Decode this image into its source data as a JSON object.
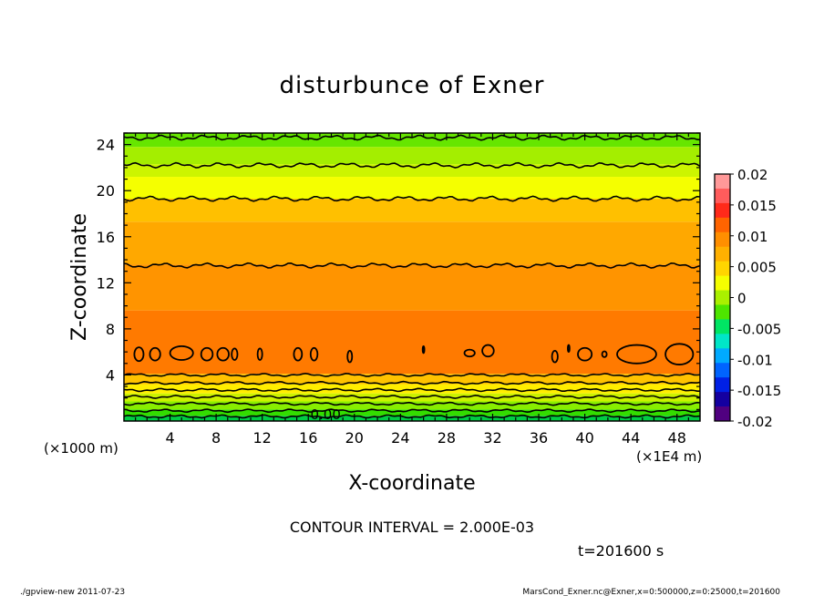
{
  "chart_data": {
    "type": "heatmap",
    "title": "disturbunce of Exner",
    "xlabel": "X-coordinate",
    "ylabel": "Z-coordinate",
    "x_unit": "(×1000 m)",
    "x_unit_secondary": "(×1E4 m)",
    "xlim": [
      0,
      50
    ],
    "ylim": [
      0,
      25
    ],
    "x_ticks": [
      4,
      8,
      12,
      16,
      20,
      24,
      28,
      32,
      36,
      40,
      44,
      48
    ],
    "y_ticks": [
      4,
      8,
      12,
      16,
      20,
      24
    ],
    "colorbar": {
      "range": [
        -0.02,
        0.02
      ],
      "labels": [
        "0.02",
        "0.015",
        "0.01",
        "0.005",
        "0",
        "-0.005",
        "-0.01",
        "-0.015",
        "-0.02"
      ],
      "colors": [
        "#ff9999",
        "#ff5c5c",
        "#ff2a1a",
        "#ff6400",
        "#ff8f00",
        "#ffb000",
        "#ffd500",
        "#f5ff00",
        "#aaf000",
        "#4ee600",
        "#00e664",
        "#00e6c8",
        "#00aaff",
        "#0064ff",
        "#0020e6",
        "#1400a0",
        "#500080"
      ]
    },
    "bands": [
      {
        "z0": 0,
        "z1": 0.45,
        "value": -0.001,
        "color": "#00cc44"
      },
      {
        "z0": 0.45,
        "z1": 1.0,
        "value": 0.0,
        "color": "#33dd00"
      },
      {
        "z0": 1.0,
        "z1": 1.7,
        "value": 0.002,
        "color": "#88ee00"
      },
      {
        "z0": 1.7,
        "z1": 2.4,
        "value": 0.004,
        "color": "#ccf200"
      },
      {
        "z0": 2.4,
        "z1": 3.2,
        "value": 0.006,
        "color": "#ffee00"
      },
      {
        "z0": 3.2,
        "z1": 4.1,
        "value": 0.008,
        "color": "#ffc200"
      },
      {
        "z0": 4.1,
        "z1": 9.6,
        "value": 0.011,
        "color": "#ff7a00"
      },
      {
        "z0": 9.6,
        "z1": 13.6,
        "value": 0.01,
        "color": "#ff9400"
      },
      {
        "z0": 13.6,
        "z1": 17.3,
        "value": 0.009,
        "color": "#ffa800"
      },
      {
        "z0": 17.3,
        "z1": 19.3,
        "value": 0.008,
        "color": "#ffc000"
      },
      {
        "z0": 19.3,
        "z1": 21.2,
        "value": 0.006,
        "color": "#f5ff00"
      },
      {
        "z0": 21.2,
        "z1": 22.3,
        "value": 0.005,
        "color": "#ccf500"
      },
      {
        "z0": 22.3,
        "z1": 23.8,
        "value": 0.003,
        "color": "#a4ee00"
      },
      {
        "z0": 23.8,
        "z1": 25.0,
        "value": 0.001,
        "color": "#66e600"
      }
    ],
    "contours_z": [
      0.4,
      0.9,
      1.5,
      2.1,
      2.7,
      3.3,
      4.0,
      13.5,
      19.3,
      22.2,
      24.6
    ],
    "contour_label": {
      "text": "0.00",
      "x": 17.5,
      "z": 0.55
    },
    "closed_contours": [
      {
        "x": 1.3,
        "z": 5.8,
        "w": 0.8,
        "h": 1.2
      },
      {
        "x": 2.7,
        "z": 5.8,
        "w": 0.9,
        "h": 1.1
      },
      {
        "x": 5.0,
        "z": 5.9,
        "w": 2.0,
        "h": 1.2
      },
      {
        "x": 7.2,
        "z": 5.8,
        "w": 1.0,
        "h": 1.1
      },
      {
        "x": 8.6,
        "z": 5.8,
        "w": 1.0,
        "h": 1.1
      },
      {
        "x": 9.6,
        "z": 5.8,
        "w": 0.5,
        "h": 1.0
      },
      {
        "x": 11.8,
        "z": 5.8,
        "w": 0.4,
        "h": 1.0
      },
      {
        "x": 15.1,
        "z": 5.8,
        "w": 0.7,
        "h": 1.1
      },
      {
        "x": 16.5,
        "z": 5.8,
        "w": 0.6,
        "h": 1.1
      },
      {
        "x": 19.6,
        "z": 5.6,
        "w": 0.4,
        "h": 1.0
      },
      {
        "x": 26.0,
        "z": 6.2,
        "w": 0.15,
        "h": 0.6
      },
      {
        "x": 30.0,
        "z": 5.9,
        "w": 0.9,
        "h": 0.6
      },
      {
        "x": 31.6,
        "z": 6.1,
        "w": 1.0,
        "h": 1.0
      },
      {
        "x": 37.4,
        "z": 5.6,
        "w": 0.5,
        "h": 1.0
      },
      {
        "x": 38.6,
        "z": 6.3,
        "w": 0.15,
        "h": 0.6
      },
      {
        "x": 40.0,
        "z": 5.8,
        "w": 1.2,
        "h": 1.1
      },
      {
        "x": 41.7,
        "z": 5.8,
        "w": 0.4,
        "h": 0.5
      },
      {
        "x": 44.5,
        "z": 5.8,
        "w": 3.4,
        "h": 1.6
      },
      {
        "x": 48.2,
        "z": 5.8,
        "w": 2.4,
        "h": 1.8
      }
    ]
  },
  "contour_interval": "CONTOUR INTERVAL = 2.000E-03",
  "time_label": "t=201600 s",
  "footer_left": "./gpview-new   2011-07-23",
  "footer_right": "MarsCond_Exner.nc@Exner,x=0:500000,z=0:25000,t=201600"
}
